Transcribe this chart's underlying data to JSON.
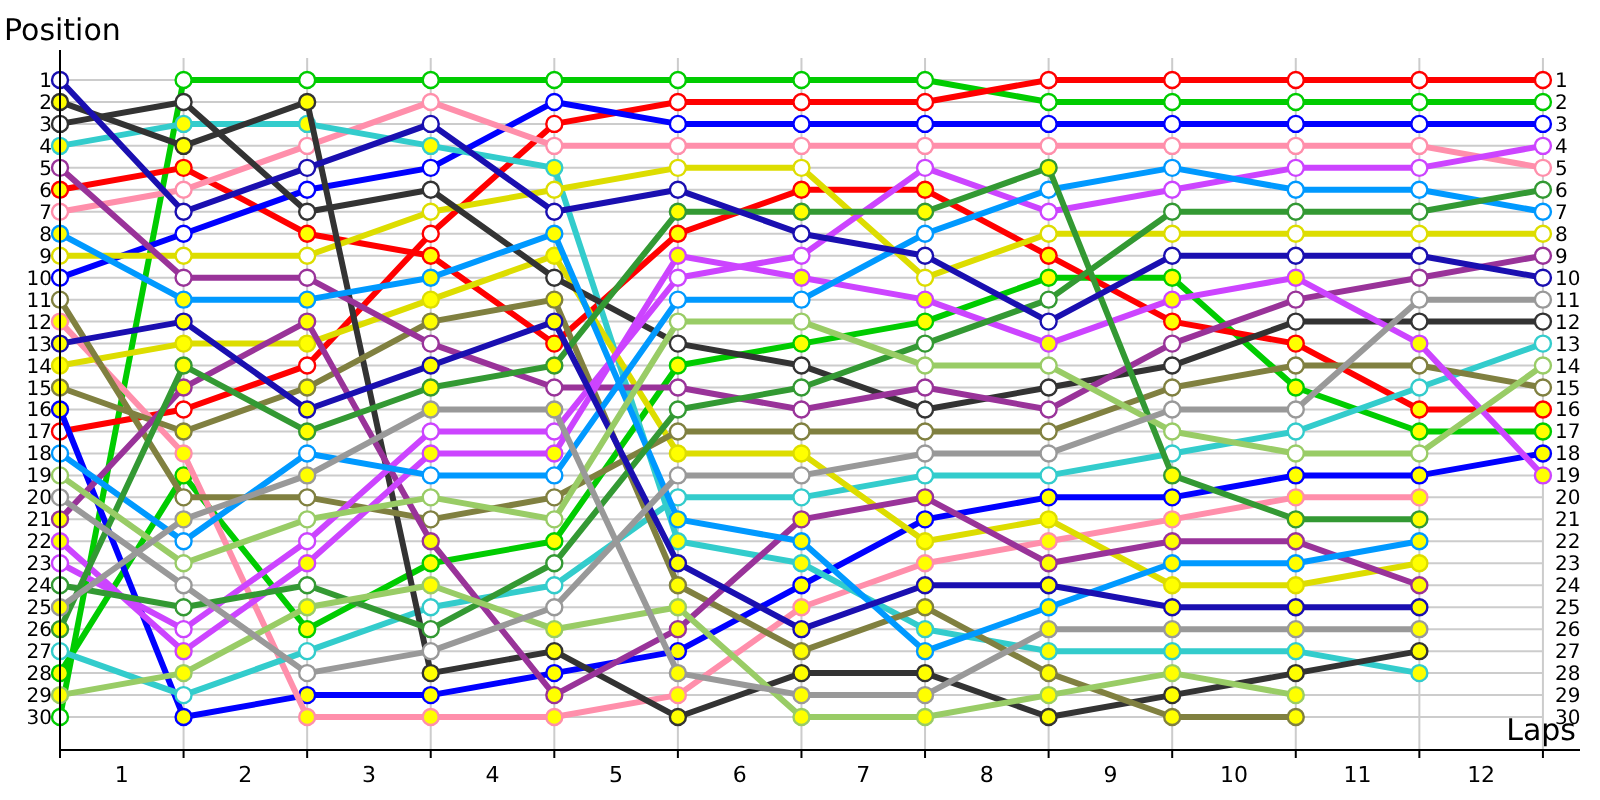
{
  "chart_data": {
    "type": "line",
    "xlabel": "Laps",
    "ylabel": "Position",
    "x": [
      0,
      1,
      2,
      3,
      4,
      5,
      6,
      7,
      8,
      9,
      10,
      11,
      12
    ],
    "xlim": [
      0,
      12.3
    ],
    "xticks": [
      {
        "value": 0,
        "label": null
      },
      {
        "value": 0.5,
        "label": "1"
      },
      {
        "value": 1,
        "label": null
      },
      {
        "value": 1.5,
        "label": "2"
      },
      {
        "value": 2,
        "label": null
      },
      {
        "value": 2.5,
        "label": "3"
      },
      {
        "value": 3,
        "label": null
      },
      {
        "value": 3.5,
        "label": "4"
      },
      {
        "value": 4,
        "label": null
      },
      {
        "value": 4.5,
        "label": "5"
      },
      {
        "value": 5,
        "label": null
      },
      {
        "value": 5.5,
        "label": "6"
      },
      {
        "value": 6,
        "label": null
      },
      {
        "value": 6.5,
        "label": "7"
      },
      {
        "value": 7,
        "label": null
      },
      {
        "value": 7.5,
        "label": "8"
      },
      {
        "value": 8,
        "label": null
      },
      {
        "value": 8.5,
        "label": "9"
      },
      {
        "value": 9,
        "label": null
      },
      {
        "value": 9.5,
        "label": "10"
      },
      {
        "value": 10,
        "label": null
      },
      {
        "value": 10.5,
        "label": "11"
      },
      {
        "value": 11,
        "label": null
      },
      {
        "value": 11.5,
        "label": "12"
      },
      {
        "value": 12,
        "label": null
      }
    ],
    "ylim": [
      31.5,
      0
    ],
    "yticks": [
      1,
      2,
      3,
      4,
      5,
      6,
      7,
      8,
      9,
      10,
      11,
      12,
      13,
      14,
      15,
      16,
      17,
      18,
      19,
      20,
      21,
      22,
      23,
      24,
      25,
      26,
      27,
      28,
      29,
      30
    ],
    "y2lim": [
      31.5,
      0
    ],
    "y2ticks": [
      1,
      2,
      3,
      4,
      5,
      6,
      7,
      8,
      9,
      10,
      11,
      12,
      13,
      14,
      15,
      16,
      17,
      18,
      19,
      20,
      21,
      22,
      23,
      24,
      25,
      26,
      27,
      28,
      29,
      30
    ],
    "grid": true,
    "marker": "circle",
    "series": [
      {
        "color": "#00cc00",
        "values": [
          30,
          1,
          1,
          1,
          1,
          1,
          1,
          1,
          2,
          2,
          2,
          2,
          2
        ]
      },
      {
        "color": "#00cc00",
        "values": [
          28,
          19,
          26,
          23,
          22,
          14,
          13,
          12,
          10,
          10,
          15,
          17,
          17
        ]
      },
      {
        "color": "#ff0000",
        "values": [
          17,
          16,
          14,
          8,
          3,
          2,
          2,
          2,
          1,
          1,
          1,
          1,
          1
        ]
      },
      {
        "color": "#ff0000",
        "values": [
          6,
          5,
          8,
          9,
          13,
          8,
          6,
          6,
          9,
          12,
          13,
          16,
          16
        ]
      },
      {
        "color": "#0000ff",
        "values": [
          10,
          8,
          6,
          5,
          2,
          3,
          3,
          3,
          3,
          3,
          3,
          3,
          3
        ]
      },
      {
        "color": "#0000ff",
        "values": [
          16,
          30,
          29,
          29,
          28,
          27,
          24,
          21,
          20,
          20,
          19,
          19,
          18
        ]
      },
      {
        "color": "#ff8fab",
        "values": [
          7,
          6,
          4,
          2,
          4,
          4,
          4,
          4,
          4,
          4,
          4,
          4,
          5
        ]
      },
      {
        "color": "#ff8fab",
        "values": [
          12,
          18,
          30,
          30,
          30,
          29,
          25,
          23,
          22,
          21,
          20,
          20,
          null
        ]
      },
      {
        "color": "#33cccc",
        "values": [
          27,
          29,
          27,
          25,
          24,
          20,
          20,
          19,
          19,
          18,
          17,
          15,
          13
        ]
      },
      {
        "color": "#33cccc",
        "values": [
          4,
          3,
          3,
          4,
          5,
          22,
          23,
          26,
          27,
          27,
          27,
          28,
          null
        ]
      },
      {
        "color": "#dddd00",
        "values": [
          9,
          9,
          9,
          7,
          6,
          5,
          5,
          10,
          8,
          8,
          8,
          8,
          8
        ]
      },
      {
        "color": "#dddd00",
        "values": [
          14,
          13,
          13,
          11,
          9,
          18,
          18,
          22,
          21,
          24,
          24,
          23,
          null
        ]
      },
      {
        "color": "#333333",
        "values": [
          3,
          2,
          7,
          6,
          10,
          13,
          14,
          16,
          15,
          14,
          12,
          12,
          12
        ]
      },
      {
        "color": "#333333",
        "values": [
          2,
          4,
          2,
          28,
          27,
          30,
          28,
          28,
          30,
          29,
          28,
          27,
          null
        ]
      },
      {
        "color": "#808040",
        "values": [
          11,
          20,
          20,
          21,
          20,
          17,
          17,
          17,
          17,
          15,
          14,
          14,
          15
        ]
      },
      {
        "color": "#808040",
        "values": [
          15,
          17,
          15,
          12,
          11,
          24,
          27,
          25,
          28,
          30,
          30,
          null,
          null
        ]
      },
      {
        "color": "#993399",
        "values": [
          5,
          10,
          10,
          13,
          15,
          15,
          16,
          15,
          16,
          13,
          11,
          10,
          9
        ]
      },
      {
        "color": "#993399",
        "values": [
          21,
          15,
          12,
          22,
          29,
          26,
          21,
          20,
          23,
          22,
          22,
          24,
          null
        ]
      },
      {
        "color": "#cc44ff",
        "values": [
          23,
          26,
          22,
          17,
          17,
          10,
          9,
          5,
          7,
          6,
          5,
          5,
          4
        ]
      },
      {
        "color": "#cc44ff",
        "values": [
          22,
          27,
          23,
          18,
          18,
          9,
          10,
          11,
          13,
          11,
          10,
          13,
          19
        ]
      },
      {
        "color": "#0099ff",
        "values": [
          18,
          22,
          18,
          19,
          19,
          11,
          11,
          8,
          6,
          5,
          6,
          6,
          7
        ]
      },
      {
        "color": "#0099ff",
        "values": [
          8,
          11,
          11,
          10,
          8,
          21,
          22,
          27,
          25,
          23,
          23,
          22,
          null
        ]
      },
      {
        "color": "#339933",
        "values": [
          24,
          25,
          24,
          26,
          23,
          16,
          15,
          13,
          11,
          7,
          7,
          7,
          6
        ]
      },
      {
        "color": "#339933",
        "values": [
          26,
          14,
          17,
          15,
          14,
          7,
          7,
          7,
          5,
          19,
          21,
          21,
          null
        ]
      },
      {
        "color": "#1a0fb0",
        "values": [
          1,
          7,
          5,
          3,
          7,
          6,
          8,
          9,
          12,
          9,
          9,
          9,
          10
        ]
      },
      {
        "color": "#1a0fb0",
        "values": [
          13,
          12,
          16,
          14,
          12,
          23,
          26,
          24,
          24,
          25,
          25,
          25,
          null
        ]
      },
      {
        "color": "#99cc66",
        "values": [
          19,
          23,
          21,
          20,
          21,
          12,
          12,
          14,
          14,
          17,
          18,
          18,
          14
        ]
      },
      {
        "color": "#99cc66",
        "values": [
          29,
          28,
          25,
          24,
          26,
          25,
          30,
          30,
          29,
          28,
          29,
          null,
          null
        ]
      },
      {
        "color": "#999999",
        "values": [
          20,
          24,
          28,
          27,
          25,
          19,
          19,
          18,
          18,
          16,
          16,
          11,
          11
        ]
      },
      {
        "color": "#999999",
        "values": [
          25,
          21,
          19,
          16,
          16,
          28,
          29,
          29,
          26,
          26,
          26,
          26,
          null
        ]
      }
    ]
  }
}
